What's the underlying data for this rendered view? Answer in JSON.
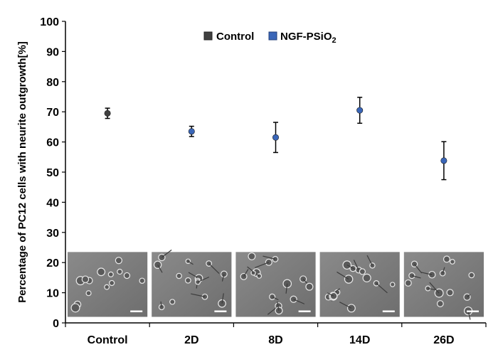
{
  "chart_data": {
    "type": "scatter",
    "ylabel": "Percentage of PC12 cells with neurite outgrowth[%]",
    "xlabel": "",
    "categories": [
      "Control",
      "2D",
      "8D",
      "14D",
      "26D"
    ],
    "ylim": [
      0,
      100
    ],
    "yticks": [
      0,
      10,
      20,
      30,
      40,
      50,
      60,
      70,
      80,
      90,
      100
    ],
    "grid": false,
    "legend_position": "top-center",
    "legend": {
      "control_label": "Control",
      "treated_label_main": "NGF-PSiO",
      "treated_label_sub": "2"
    },
    "series": [
      {
        "name": "Control",
        "color": "#404040",
        "points": [
          {
            "category": "Control",
            "value": 69.5,
            "error": 1.7
          }
        ]
      },
      {
        "name": "NGF-PSiO2",
        "color": "#3a66b8",
        "points": [
          {
            "category": "2D",
            "value": 63.5,
            "error": 1.7
          },
          {
            "category": "8D",
            "value": 61.5,
            "error": 5.0
          },
          {
            "category": "14D",
            "value": 70.5,
            "error": 4.3
          },
          {
            "category": "26D",
            "value": 53.8,
            "error": 6.3
          }
        ]
      }
    ],
    "inset_images": [
      {
        "category": "Control",
        "description": "phase-contrast micrograph"
      },
      {
        "category": "2D",
        "description": "phase-contrast micrograph"
      },
      {
        "category": "8D",
        "description": "phase-contrast micrograph"
      },
      {
        "category": "14D",
        "description": "phase-contrast micrograph"
      },
      {
        "category": "26D",
        "description": "phase-contrast micrograph"
      }
    ]
  }
}
